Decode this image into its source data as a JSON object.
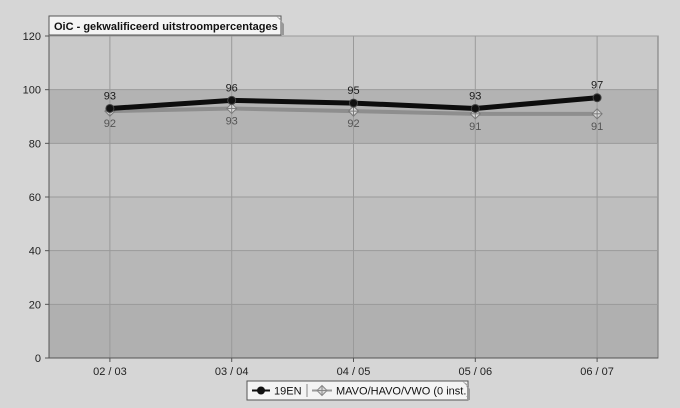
{
  "chart_data": {
    "type": "line",
    "title": "OiC - gekwalificeerd uitstroompercentages",
    "xlabel": "",
    "ylabel": "",
    "categories": [
      "02 / 03",
      "03 / 04",
      "04 / 05",
      "05 / 06",
      "06 / 07"
    ],
    "ylim": [
      0,
      120
    ],
    "yticks": [
      0,
      20,
      40,
      60,
      80,
      100,
      120
    ],
    "grid": true,
    "legend_position": "bottom-center",
    "series": [
      {
        "name": "19EN",
        "values": [
          93,
          96,
          95,
          93,
          97
        ],
        "labels": [
          "93",
          "96",
          "95",
          "93",
          "97"
        ],
        "color": "#111111",
        "marker": "circle"
      },
      {
        "name": "MAVO/HAVO/VWO (0 inst.)",
        "values": [
          92,
          93,
          92,
          91,
          91
        ],
        "labels": [
          "92",
          "93",
          "92",
          "91",
          "91"
        ],
        "color": "#8a8a8a",
        "marker": "diamond-cross"
      }
    ]
  }
}
